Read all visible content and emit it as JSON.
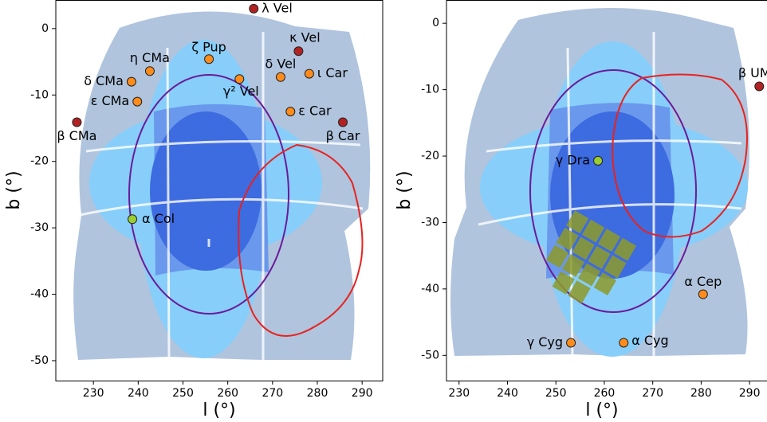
{
  "chart_data": [
    {
      "type": "scatter",
      "xlabel": "l (°)",
      "ylabel": "b (°)",
      "xlim": [
        221.6,
        294.6
      ],
      "ylim": [
        -53.0,
        4.3
      ],
      "xticks": [
        230,
        240,
        250,
        260,
        270,
        280,
        290
      ],
      "yticks": [
        0,
        -10,
        -20,
        -30,
        -40,
        -50
      ],
      "labels": [
        "λ Vel",
        "κ Vel",
        "ζ Pup",
        "η CMa",
        "δ Vel",
        "ι Car",
        "γ² Vel",
        "δ CMa",
        "ε CMa",
        "ε Car",
        "β CMa",
        "β Car",
        "α Col"
      ],
      "x": [
        265.8,
        275.8,
        255.8,
        242.6,
        271.8,
        278.2,
        262.6,
        238.5,
        239.8,
        274.0,
        226.3,
        285.7,
        238.7
      ],
      "y": [
        3.0,
        -3.4,
        -4.6,
        -6.4,
        -7.3,
        -6.8,
        -7.6,
        -8.0,
        -11.0,
        -12.5,
        -14.1,
        -14.1,
        -28.7
      ],
      "colors": [
        "#b22222",
        "#b22222",
        "#ff8c1a",
        "#ff8c1a",
        "#ff8c1a",
        "#ff8c1a",
        "#ff8c1a",
        "#ff8c1a",
        "#ff8c1a",
        "#ff8c1a",
        "#b22222",
        "#b22222",
        "#9acd32"
      ]
    },
    {
      "type": "scatter",
      "xlabel": "l (°)",
      "ylabel": "b (°)",
      "xlim": [
        227.4,
        293.6
      ],
      "ylim": [
        -53.8,
        3.5
      ],
      "xticks": [
        230,
        240,
        250,
        260,
        270,
        280,
        290
      ],
      "yticks": [
        0,
        -10,
        -20,
        -30,
        -40,
        -50
      ],
      "labels": [
        "β UM",
        "γ Dra",
        "α Cep",
        "γ Cyg",
        "α Cyg"
      ],
      "x": [
        292.0,
        258.7,
        280.4,
        253.1,
        264.0
      ],
      "y": [
        -9.5,
        -20.7,
        -40.8,
        -48.1,
        -48.1
      ],
      "colors": [
        "#b22222",
        "#9acd32",
        "#ff8c1a",
        "#ff8c1a",
        "#ff8c1a"
      ]
    }
  ]
}
